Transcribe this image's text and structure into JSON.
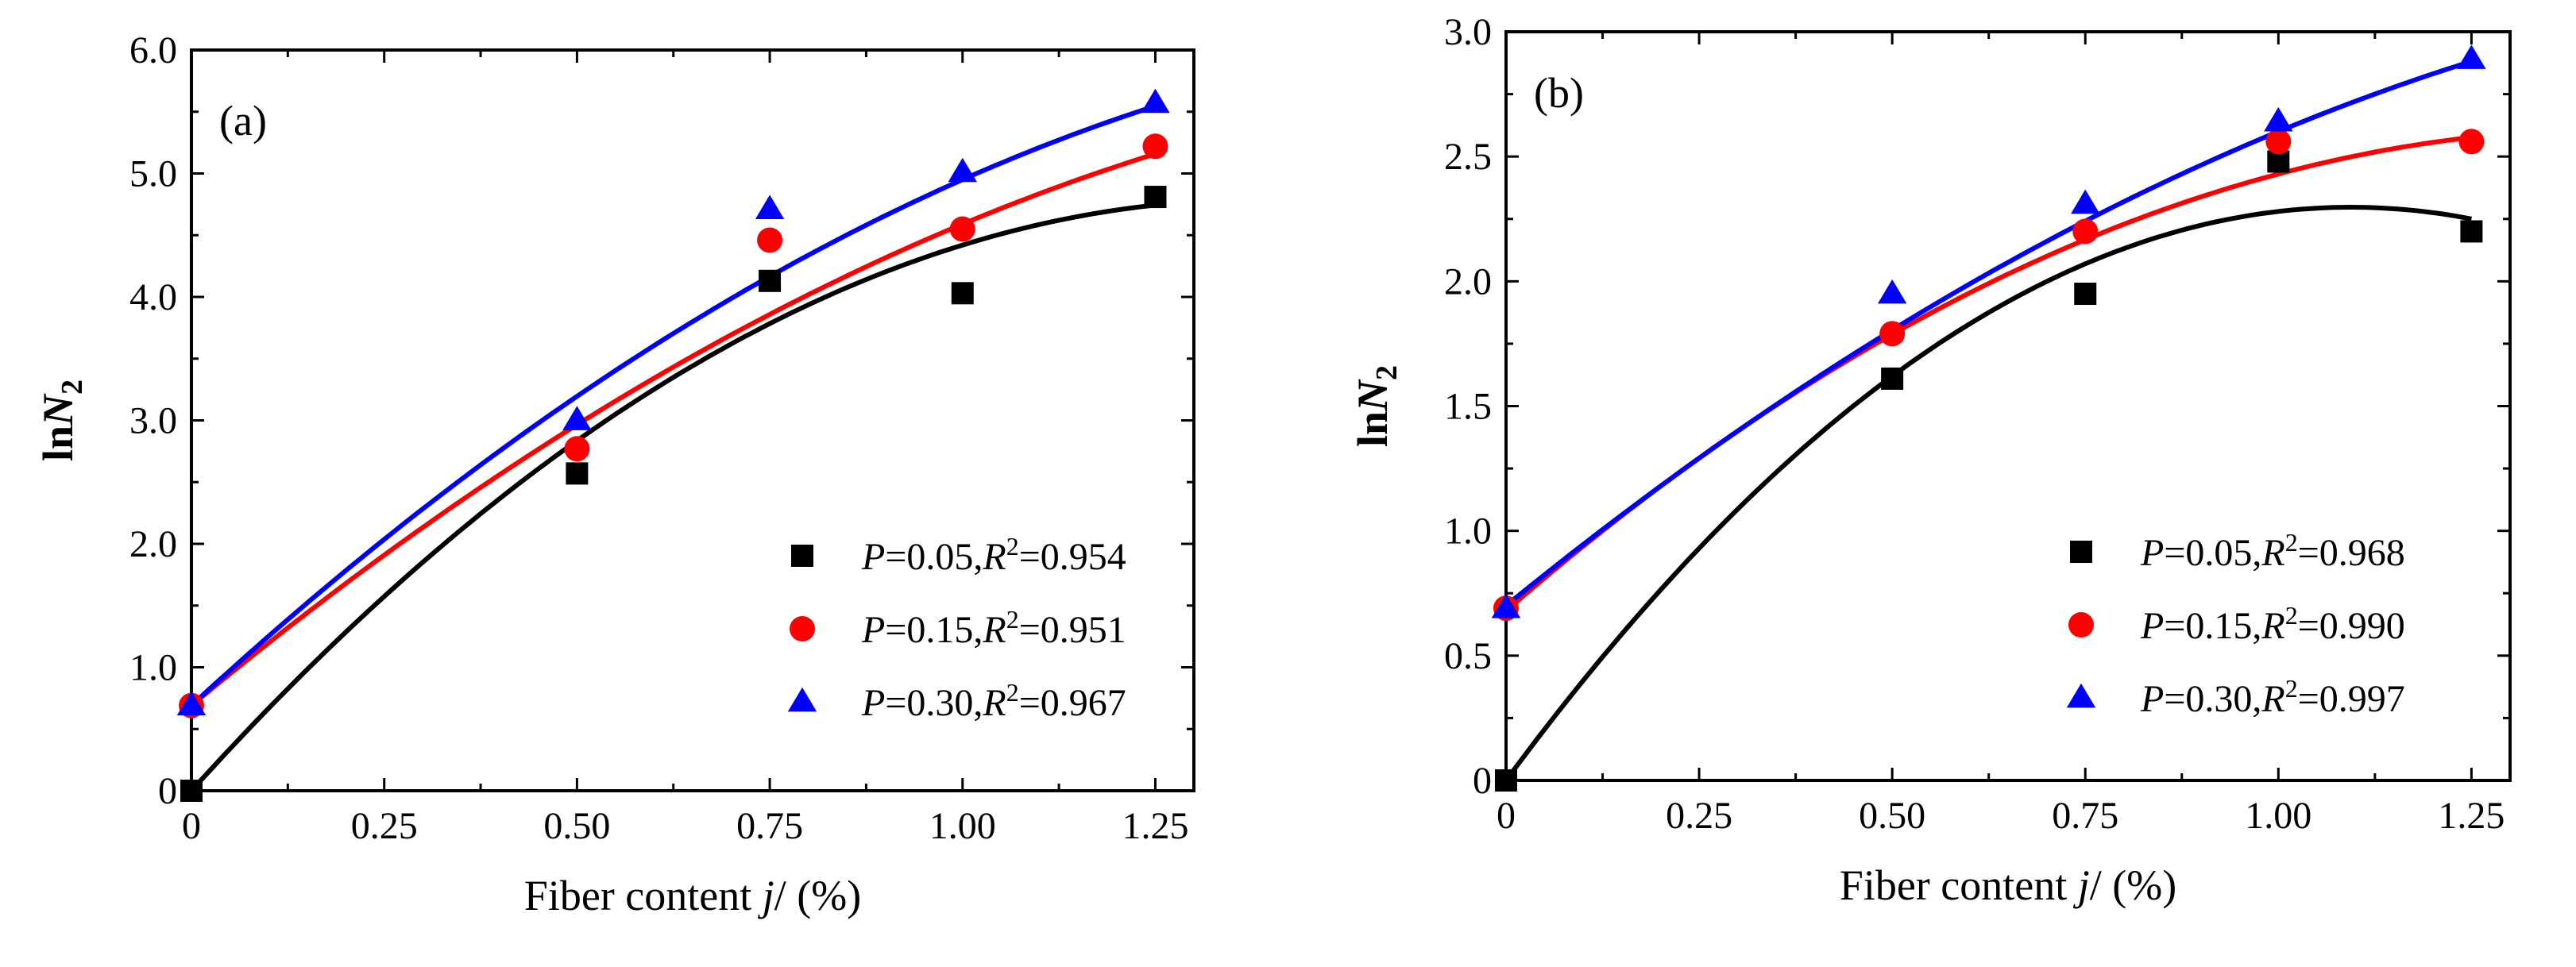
{
  "chart_data": [
    {
      "type": "scatter",
      "panel_label": "(a)",
      "xlabel": {
        "main": "Fiber content ",
        "var": "j",
        "unit": "/ (%)"
      },
      "ylabel": {
        "prefix": "ln",
        "var": "N",
        "sub": "2"
      },
      "xlim": [
        0,
        1.3
      ],
      "ylim": [
        0,
        6.0
      ],
      "xticks": [
        0,
        0.25,
        0.5,
        0.75,
        1.0,
        1.25
      ],
      "xtick_labels": [
        "0",
        "0.25",
        "0.50",
        "0.75",
        "1.00",
        "1.25"
      ],
      "yticks": [
        0,
        1,
        2,
        3,
        4,
        5,
        6
      ],
      "ytick_labels": [
        "0",
        "1.0",
        "2.0",
        "3.0",
        "4.0",
        "5.0",
        "6.0"
      ],
      "legend_position": "bottom-right",
      "series": [
        {
          "name": "P=0.05,R2=0.954",
          "P": "0.05",
          "R2": "0.954",
          "color": "#000000",
          "marker": "square",
          "x": [
            0,
            0.5,
            0.75,
            1.0,
            1.25
          ],
          "y": [
            0.0,
            2.57,
            4.13,
            4.03,
            4.81
          ],
          "fit": {
            "a": 0.0,
            "b": 6.92,
            "c": -2.5
          }
        },
        {
          "name": "P=0.15,R2=0.951",
          "P": "0.15",
          "R2": "0.951",
          "color": "#ff0000",
          "marker": "circle",
          "x": [
            0,
            0.5,
            0.75,
            1.0,
            1.25
          ],
          "y": [
            0.69,
            2.77,
            4.46,
            4.55,
            5.22
          ],
          "fit": {
            "a": 0.69,
            "b": 5.2,
            "c": -1.3
          }
        },
        {
          "name": "P=0.30,R2=0.967",
          "P": "0.30",
          "R2": "0.967",
          "color": "#0000ff",
          "marker": "triangle",
          "x": [
            0,
            0.5,
            0.75,
            1.0,
            1.25
          ],
          "y": [
            0.69,
            3.0,
            4.71,
            5.01,
            5.57
          ],
          "fit": {
            "a": 0.69,
            "b": 5.76,
            "c": -1.5
          }
        }
      ]
    },
    {
      "type": "scatter",
      "panel_label": "(b)",
      "xlabel": {
        "main": "Fiber content ",
        "var": "j",
        "unit": "/ (%)"
      },
      "ylabel": {
        "prefix": "ln",
        "var": "N",
        "sub": "2"
      },
      "xlim": [
        0,
        1.3
      ],
      "ylim": [
        0,
        3.0
      ],
      "xticks": [
        0,
        0.25,
        0.5,
        0.75,
        1.0,
        1.25
      ],
      "xtick_labels": [
        "0",
        "0.25",
        "0.50",
        "0.75",
        "1.00",
        "1.25"
      ],
      "yticks": [
        0,
        0.5,
        1.0,
        1.5,
        2.0,
        2.5,
        3.0
      ],
      "ytick_labels": [
        "0",
        "0.5",
        "1.0",
        "1.5",
        "2.0",
        "2.5",
        "3.0"
      ],
      "legend_position": "bottom-right",
      "series": [
        {
          "name": "P=0.05,R2=0.968",
          "P": "0.05",
          "R2": "0.968",
          "color": "#000000",
          "marker": "square",
          "x": [
            0,
            0.5,
            0.75,
            1.0,
            1.25
          ],
          "y": [
            0.0,
            1.61,
            1.95,
            2.48,
            2.2
          ],
          "fit": {
            "a": 0.0,
            "b": 4.2,
            "c": -1.92
          }
        },
        {
          "name": "P=0.15,R2=0.990",
          "P": "0.15",
          "R2": "0.990",
          "color": "#ff0000",
          "marker": "circle",
          "x": [
            0,
            0.5,
            0.75,
            1.0,
            1.25
          ],
          "y": [
            0.69,
            1.79,
            2.2,
            2.56,
            2.56
          ],
          "fit": {
            "a": 0.68,
            "b": 2.68,
            "c": -0.93
          }
        },
        {
          "name": "P=0.30,R2=0.997",
          "P": "0.30",
          "R2": "0.997",
          "color": "#0000ff",
          "marker": "triangle",
          "x": [
            0,
            0.5,
            0.75,
            1.0,
            1.25
          ],
          "y": [
            0.69,
            1.95,
            2.31,
            2.64,
            2.89
          ],
          "fit": {
            "a": 0.7,
            "b": 2.52,
            "c": -0.62
          }
        }
      ]
    }
  ]
}
